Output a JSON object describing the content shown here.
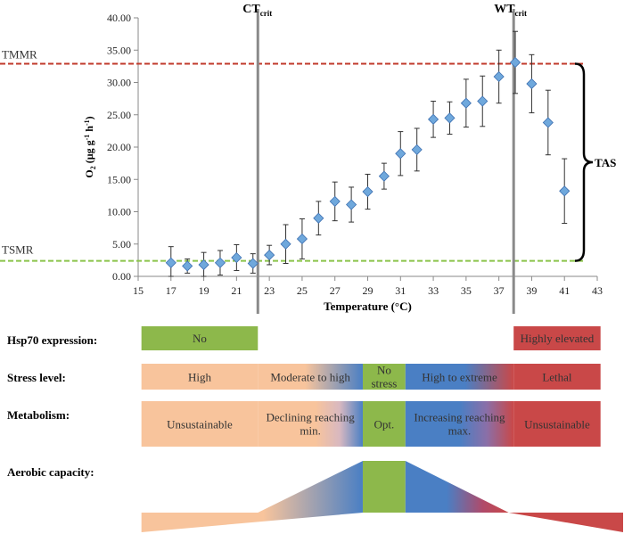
{
  "chart_data": {
    "type": "scatter",
    "xlabel": "Temperature (°C)",
    "ylabel_main": "O",
    "ylabel_sub": "2",
    "ylabel_tail": " (µg g",
    "ylabel_sup1": "-1",
    "ylabel_mid": " h",
    "ylabel_sup2": "-1",
    "ylabel_end": ")",
    "xlim": [
      15,
      43
    ],
    "ylim": [
      0,
      40
    ],
    "x_ticks": [
      "15",
      "17",
      "19",
      "21",
      "23",
      "25",
      "27",
      "29",
      "31",
      "33",
      "35",
      "37",
      "39",
      "41",
      "43"
    ],
    "y_ticks": [
      "0.00",
      "5.00",
      "10.00",
      "15.00",
      "20.00",
      "25.00",
      "30.00",
      "35.00",
      "40.00"
    ],
    "marker_color": "#6fa8dc",
    "points": [
      {
        "x": 17,
        "y": 2.1,
        "err": 2.5
      },
      {
        "x": 18,
        "y": 1.6,
        "err": 1.1
      },
      {
        "x": 19,
        "y": 1.8,
        "err": 1.9
      },
      {
        "x": 20,
        "y": 2.1,
        "err": 1.9
      },
      {
        "x": 21,
        "y": 2.9,
        "err": 2.0
      },
      {
        "x": 22,
        "y": 2.0,
        "err": 1.5
      },
      {
        "x": 23,
        "y": 3.3,
        "err": 1.5
      },
      {
        "x": 24,
        "y": 5.0,
        "err": 3.0
      },
      {
        "x": 25,
        "y": 5.8,
        "err": 3.1
      },
      {
        "x": 26,
        "y": 9.0,
        "err": 2.6
      },
      {
        "x": 27,
        "y": 11.6,
        "err": 3.0
      },
      {
        "x": 28,
        "y": 11.1,
        "err": 2.7
      },
      {
        "x": 29,
        "y": 13.1,
        "err": 2.7
      },
      {
        "x": 30,
        "y": 15.5,
        "err": 2.0
      },
      {
        "x": 31,
        "y": 19.0,
        "err": 3.4
      },
      {
        "x": 32,
        "y": 19.6,
        "err": 3.3
      },
      {
        "x": 33,
        "y": 24.3,
        "err": 2.8
      },
      {
        "x": 34,
        "y": 24.5,
        "err": 2.5
      },
      {
        "x": 35,
        "y": 26.8,
        "err": 3.7
      },
      {
        "x": 36,
        "y": 27.1,
        "err": 3.9
      },
      {
        "x": 37,
        "y": 30.9,
        "err": 4.1
      },
      {
        "x": 38,
        "y": 33.1,
        "err": 4.8
      },
      {
        "x": 39,
        "y": 29.8,
        "err": 4.5
      },
      {
        "x": 40,
        "y": 23.8,
        "err": 5.0
      },
      {
        "x": 41,
        "y": 13.2,
        "err": 5.0
      }
    ],
    "tmmr": {
      "label": "TMMR",
      "y": 32.9,
      "color": "#c0392b"
    },
    "tsmr": {
      "label": "TSMR",
      "y": 2.4,
      "color": "#8bc34a"
    },
    "ct_crit": {
      "label": "CT",
      "sub": "crit",
      "x": 22.3
    },
    "wt_crit": {
      "label": "WT",
      "sub": "crit",
      "x": 37.9
    },
    "tas_label": "TAS"
  },
  "rows": {
    "hsp70": {
      "label": "Hsp70 expression:",
      "bands": [
        {
          "text": "No",
          "from": 15.2,
          "to": 22.3,
          "color": "#8db84b"
        },
        {
          "text": "Highly elevated",
          "from": 37.9,
          "to": 43.2,
          "color": "#c94848"
        }
      ]
    },
    "stress": {
      "label": "Stress level:",
      "bands": [
        {
          "text": "High",
          "from": 15.2,
          "to": 22.3
        },
        {
          "text": "Moderate to high",
          "from": 22.3,
          "to": 28.7
        },
        {
          "text": "No\nstress",
          "from": 28.7,
          "to": 31.3
        },
        {
          "text": "High to extreme",
          "from": 31.3,
          "to": 37.9
        },
        {
          "text": "Lethal",
          "from": 37.9,
          "to": 43.2
        }
      ]
    },
    "metabolism": {
      "label": "Metabolism:",
      "bands": [
        {
          "text": "Unsustainable",
          "from": 15.2,
          "to": 22.3
        },
        {
          "text": "Declining reaching\nmin.",
          "from": 22.3,
          "to": 28.7
        },
        {
          "text": "Opt.",
          "from": 28.7,
          "to": 31.3
        },
        {
          "text": "Increasing reaching\nmax.",
          "from": 31.3,
          "to": 37.9
        },
        {
          "text": "Unsustainable",
          "from": 37.9,
          "to": 43.2
        }
      ]
    },
    "aerobic": {
      "label": "Aerobic capacity:"
    }
  },
  "colors": {
    "peach": "#f8c49c",
    "blue": "#4a7fc4",
    "green": "#8db84b",
    "red": "#c94848"
  }
}
